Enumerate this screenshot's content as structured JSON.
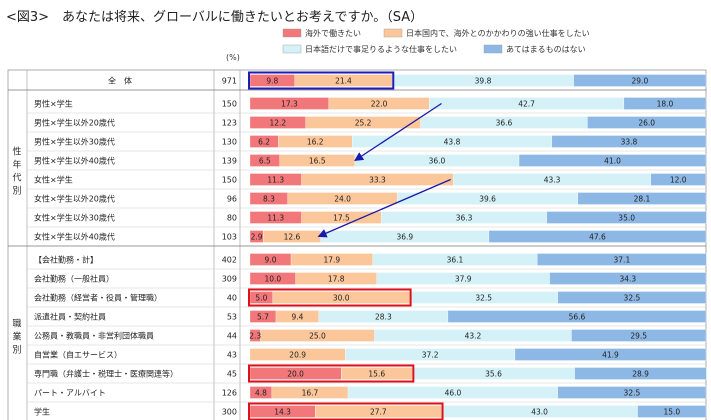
{
  "title": "<図3>　あなたは将来、グローバルに働きたいとお考えですか。（SA）",
  "pct_header": "(%)",
  "chart_data": {
    "type": "stacked-bar-horizontal",
    "title": "<図3>　あなたは将来、グローバルに働きたいとお考えですか。（SA）",
    "xlim": [
      0,
      100
    ],
    "series": [
      {
        "name": "海外で働きたい",
        "color": "#f2777a"
      },
      {
        "name": "日本国内で、海外とのかかわりの強い仕事をしたい",
        "color": "#fbc79a"
      },
      {
        "name": "日本語だけで事足りるような仕事をしたい",
        "color": "#d4f1f7"
      },
      {
        "name": "あてはまるものはない",
        "color": "#8db8e5"
      }
    ],
    "groups": [
      {
        "name": "",
        "label": "",
        "rows": [
          0
        ]
      },
      {
        "name": "性年代別",
        "label": "性年代別",
        "rows": [
          1,
          2,
          3,
          4,
          5,
          6,
          7,
          8
        ]
      },
      {
        "name": "職業別",
        "label": "職業別",
        "rows": [
          9,
          10,
          11,
          12,
          13,
          14,
          15,
          16,
          17
        ]
      }
    ],
    "rows": [
      {
        "label": "全　体",
        "n": 971,
        "values": [
          9.8,
          21.4,
          39.8,
          29.0
        ],
        "highlight": "blue"
      },
      {
        "label": "男性×学生",
        "n": 150,
        "values": [
          17.3,
          22.0,
          42.7,
          18.0
        ]
      },
      {
        "label": "男性×学生以外20歳代",
        "n": 123,
        "values": [
          12.2,
          25.2,
          36.6,
          26.0
        ]
      },
      {
        "label": "男性×学生以外30歳代",
        "n": 130,
        "values": [
          6.2,
          16.2,
          43.8,
          33.8
        ]
      },
      {
        "label": "男性×学生以外40歳代",
        "n": 139,
        "values": [
          6.5,
          16.5,
          36.0,
          41.0
        ]
      },
      {
        "label": "女性×学生",
        "n": 150,
        "values": [
          11.3,
          33.3,
          43.3,
          12.0
        ]
      },
      {
        "label": "女性×学生以外20歳代",
        "n": 96,
        "values": [
          8.3,
          24.0,
          39.6,
          28.1
        ]
      },
      {
        "label": "女性×学生以外30歳代",
        "n": 80,
        "values": [
          11.3,
          17.5,
          36.3,
          35.0
        ]
      },
      {
        "label": "女性×学生以外40歳代",
        "n": 103,
        "values": [
          2.9,
          12.6,
          36.9,
          47.6
        ]
      },
      {
        "label": "【会社勤務・計】",
        "n": 402,
        "values": [
          9.0,
          17.9,
          36.1,
          37.1
        ]
      },
      {
        "label": "会社勤務（一般社員）",
        "n": 309,
        "values": [
          10.0,
          17.8,
          37.9,
          34.3
        ]
      },
      {
        "label": "会社勤務（経営者・役員・管理職）",
        "n": 40,
        "values": [
          5.0,
          30.0,
          32.5,
          32.5
        ],
        "highlight": "red",
        "highlight_series": [
          0,
          1
        ]
      },
      {
        "label": "派遣社員・契約社員",
        "n": 53,
        "values": [
          5.7,
          9.4,
          28.3,
          56.6
        ]
      },
      {
        "label": "公務員・教職員・非営利団体職員",
        "n": 44,
        "values": [
          2.3,
          25.0,
          43.2,
          29.5
        ]
      },
      {
        "label": "自営業（自エサービス）",
        "n": 43,
        "values": [
          0,
          20.9,
          37.2,
          41.9
        ]
      },
      {
        "label": "専門職（弁護士・税理士・医療関連等）",
        "n": 45,
        "values": [
          20.0,
          15.6,
          35.6,
          28.9
        ],
        "highlight": "red",
        "highlight_series": [
          0,
          1
        ]
      },
      {
        "label": "パート・アルバイト",
        "n": 126,
        "values": [
          4.8,
          16.7,
          46.0,
          32.5
        ]
      },
      {
        "label": "学生",
        "n": 300,
        "values": [
          14.3,
          27.7,
          43.0,
          15.0
        ],
        "highlight": "red",
        "highlight_series": [
          0,
          1
        ]
      }
    ],
    "annotations": [
      {
        "type": "arrow",
        "from_row": 1,
        "from_value": 42,
        "to_row": 4,
        "to_value": 23
      },
      {
        "type": "arrow",
        "from_row": 5,
        "from_value": 44,
        "to_row": 8,
        "to_value": 15
      }
    ]
  }
}
